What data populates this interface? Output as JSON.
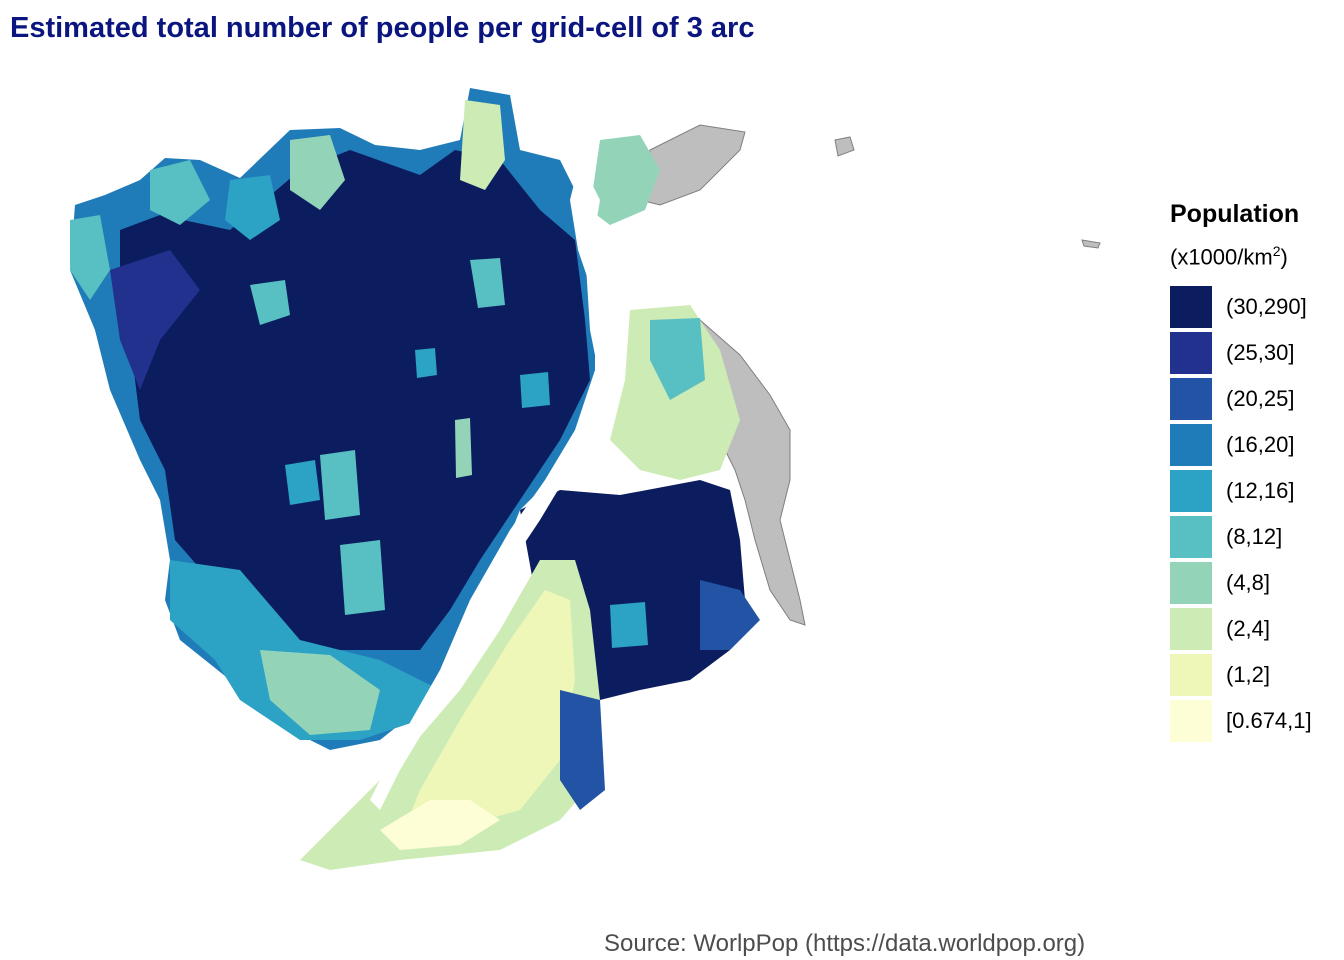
{
  "title": "Estimated total number of people per grid-cell of 3 arc",
  "source": "Source: WorlpPop (https://data.worldpop.org)",
  "legend": {
    "title": "Population",
    "unit_prefix": "(x1000/km",
    "unit_exp": "2",
    "unit_suffix": ")",
    "classes": [
      {
        "label": "(30,290]",
        "color": "#0b1d5e"
      },
      {
        "label": "(25,30]",
        "color": "#22318e"
      },
      {
        "label": "(20,25]",
        "color": "#2353a4"
      },
      {
        "label": "(16,20]",
        "color": "#1f7cb8"
      },
      {
        "label": "(12,16]",
        "color": "#2ca2c4"
      },
      {
        "label": "(8,12]",
        "color": "#58bfc3"
      },
      {
        "label": "(4,8]",
        "color": "#93d4b9"
      },
      {
        "label": "(2,4]",
        "color": "#cdebb4"
      },
      {
        "label": "(1,2]",
        "color": "#eef7b8"
      },
      {
        "label": "[0.674,1]",
        "color": "#fdfed6"
      }
    ]
  },
  "land_color": "#bebebe"
}
